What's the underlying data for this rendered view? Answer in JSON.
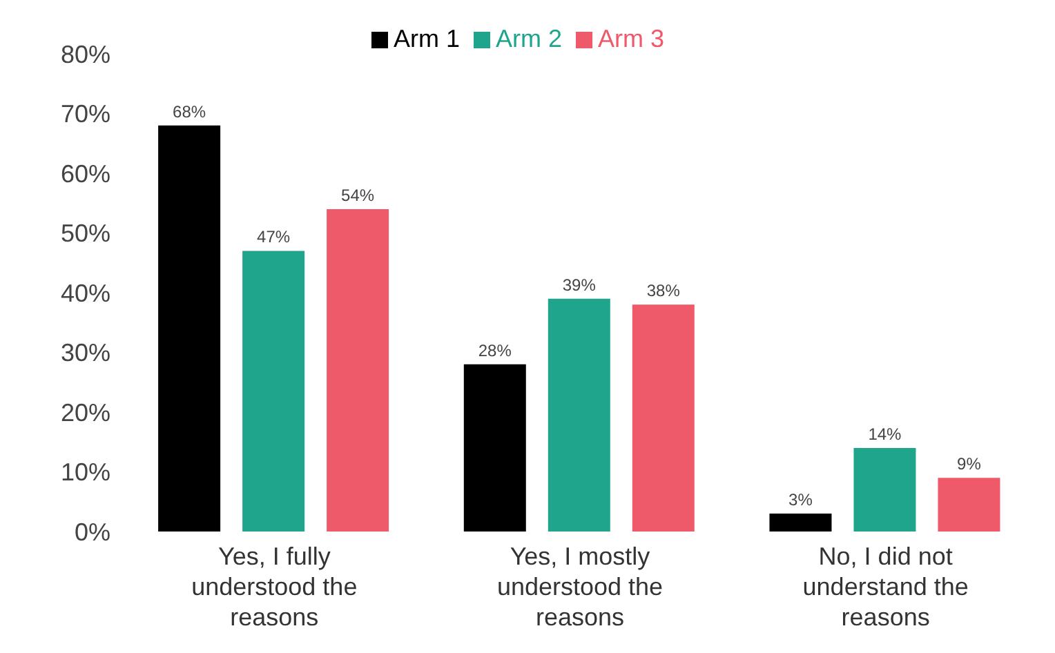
{
  "chart_data": {
    "type": "bar",
    "categories": [
      "Yes, I fully understood the reasons",
      "Yes, I mostly understood the reasons",
      "No, I did not understand the reasons"
    ],
    "series": [
      {
        "name": "Arm 1",
        "color": "#000000",
        "values": [
          68,
          28,
          3
        ],
        "value_labels": [
          "68%",
          "28%",
          "3%"
        ]
      },
      {
        "name": "Arm 2",
        "color": "#1fa58c",
        "values": [
          47,
          39,
          14
        ],
        "value_labels": [
          "47%",
          "39%",
          "14%"
        ]
      },
      {
        "name": "Arm 3",
        "color": "#ee5a6a",
        "values": [
          54,
          38,
          9
        ],
        "value_labels": [
          "54%",
          "38%",
          "9%"
        ]
      }
    ],
    "ylim": [
      0,
      80
    ],
    "yticks": [
      {
        "value": 0,
        "label": "0%"
      },
      {
        "value": 10,
        "label": "10%"
      },
      {
        "value": 20,
        "label": "20%"
      },
      {
        "value": 30,
        "label": "30%"
      },
      {
        "value": 40,
        "label": "40%"
      },
      {
        "value": 50,
        "label": "50%"
      },
      {
        "value": 60,
        "label": "60%"
      },
      {
        "value": 70,
        "label": "70%"
      },
      {
        "value": 80,
        "label": "80%"
      }
    ],
    "legend": "top",
    "grid": false
  }
}
